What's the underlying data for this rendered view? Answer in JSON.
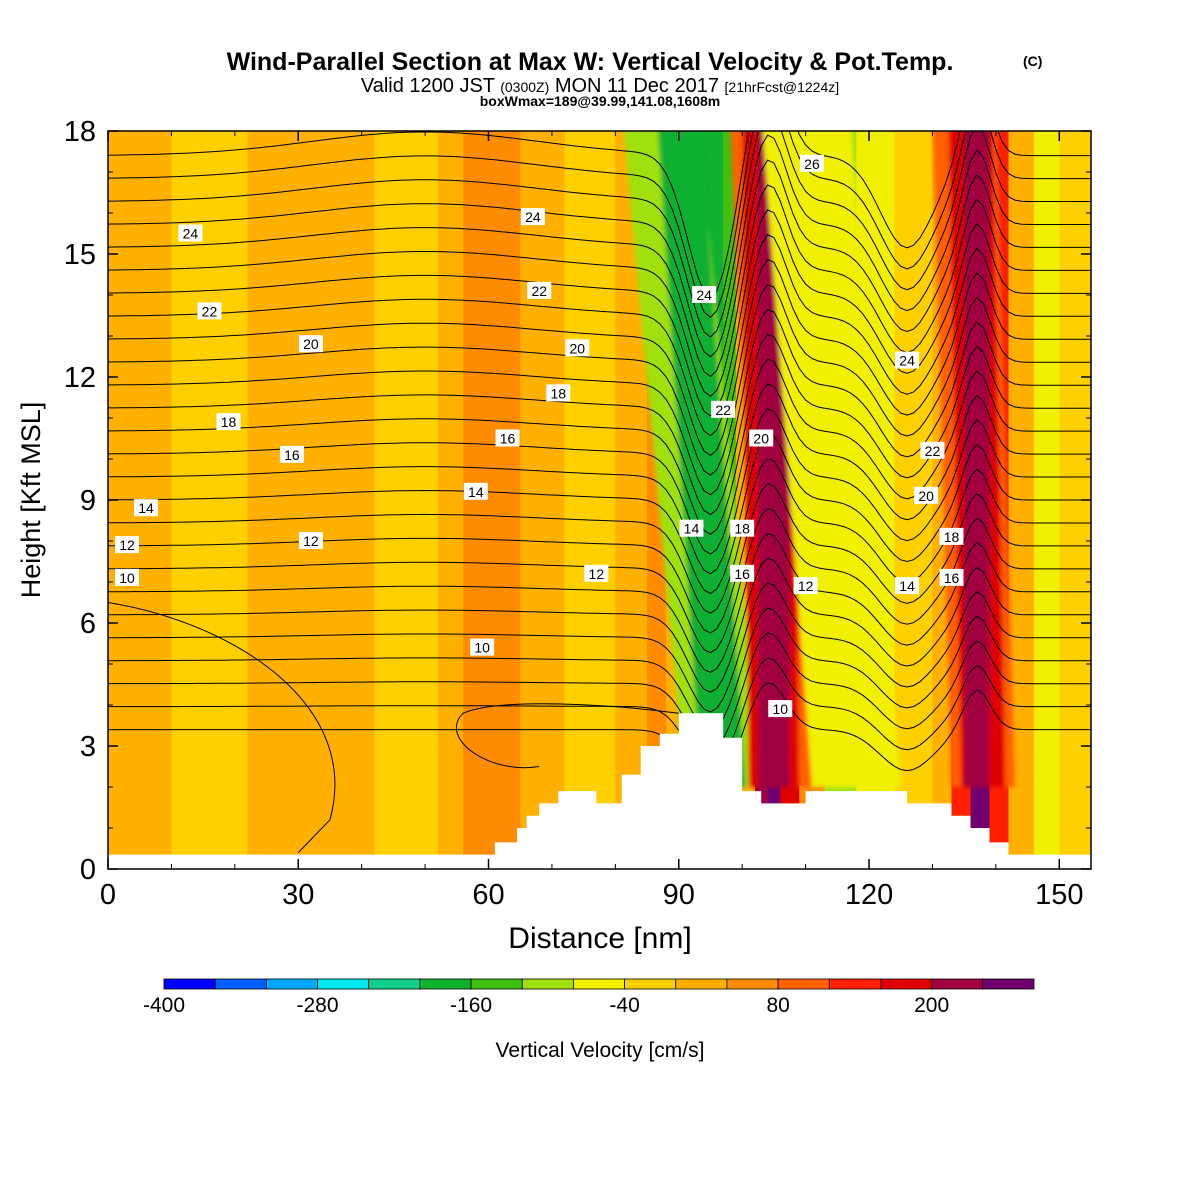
{
  "header": {
    "title_main": "Wind-Parallel Section at Max W: Vertical Velocity & Pot.Temp.",
    "title_mark": "(C)",
    "valid_prefix": "Valid 1200 JST",
    "valid_utc": "(0300Z)",
    "valid_date": "MON 11 Dec 2017",
    "valid_fcst": "[21hrFcst@1224z]",
    "box_info": "boxWmax=189@39.99,141.08,1608m"
  },
  "colorbar": {
    "label": "Vertical Velocity [cm/s]",
    "tick_labels": [
      "-400",
      "-280",
      "-160",
      "-40",
      "80",
      "200"
    ],
    "tick_values": [
      -400,
      -280,
      -160,
      -40,
      80,
      200
    ],
    "levels": [
      -400,
      -360,
      -320,
      -280,
      -240,
      -200,
      -160,
      -120,
      -80,
      -40,
      0,
      40,
      80,
      120,
      160,
      200,
      240,
      280
    ],
    "colors": [
      "#0000ff",
      "#0060ff",
      "#00a8ff",
      "#00e8f0",
      "#10d08c",
      "#10b030",
      "#40c010",
      "#a0e010",
      "#f0f000",
      "#ffd000",
      "#ffb000",
      "#ff8c00",
      "#ff6000",
      "#ff2000",
      "#e00000",
      "#a00040",
      "#700070"
    ]
  },
  "chart_data": {
    "type": "heatmap",
    "title": "Wind-Parallel Section at Max W: Vertical Velocity & Pot.Temp.",
    "xlabel": "Distance [nm]",
    "ylabel": "Height [Kft MSL]",
    "xlim": [
      0,
      155
    ],
    "ylim": [
      0,
      18
    ],
    "x_ticks": [
      0,
      30,
      60,
      90,
      120,
      150
    ],
    "y_ticks": [
      0,
      3,
      6,
      9,
      12,
      15,
      18
    ],
    "shading_variable": "Vertical Velocity [cm/s]",
    "shading_columns": [
      {
        "x": 0,
        "w": 0
      },
      {
        "x": 10,
        "w": -20
      },
      {
        "x": 22,
        "w": 20
      },
      {
        "x": 35,
        "w": 10
      },
      {
        "x": 42,
        "w": -10
      },
      {
        "x": 52,
        "w": 5
      },
      {
        "x": 56,
        "w": 50
      },
      {
        "x": 65,
        "w": 10
      },
      {
        "x": 72,
        "w": -20
      },
      {
        "x": 80,
        "w": 0
      },
      {
        "x": 85,
        "w": 55
      },
      {
        "x": 88,
        "w": 30
      },
      {
        "x": 93,
        "w": -180
      },
      {
        "x": 97,
        "w": -150
      },
      {
        "x": 99,
        "w": 30
      },
      {
        "x": 102,
        "w": 230
      },
      {
        "x": 104,
        "w": 260
      },
      {
        "x": 106,
        "w": 180
      },
      {
        "x": 109,
        "w": 60
      },
      {
        "x": 113,
        "w": -90
      },
      {
        "x": 118,
        "w": -70
      },
      {
        "x": 124,
        "w": -30
      },
      {
        "x": 130,
        "w": 30
      },
      {
        "x": 133,
        "w": 120
      },
      {
        "x": 136,
        "w": 240
      },
      {
        "x": 139,
        "w": 140
      },
      {
        "x": 142,
        "w": 20
      },
      {
        "x": 146,
        "w": -60
      },
      {
        "x": 150,
        "w": -10
      },
      {
        "x": 155,
        "w": 10
      }
    ],
    "contour_variable": "Potential Temperature",
    "contour_labels": [
      {
        "label": "24",
        "x": 13,
        "y": 15.5
      },
      {
        "label": "22",
        "x": 16,
        "y": 13.6
      },
      {
        "label": "20",
        "x": 32,
        "y": 12.8
      },
      {
        "label": "18",
        "x": 19,
        "y": 10.9
      },
      {
        "label": "16",
        "x": 29,
        "y": 10.1
      },
      {
        "label": "14",
        "x": 6,
        "y": 8.8
      },
      {
        "label": "12",
        "x": 3,
        "y": 7.9
      },
      {
        "label": "10",
        "x": 3,
        "y": 7.1
      },
      {
        "label": "12",
        "x": 32,
        "y": 8.0
      },
      {
        "label": "14",
        "x": 58,
        "y": 9.2
      },
      {
        "label": "16",
        "x": 63,
        "y": 10.5
      },
      {
        "label": "18",
        "x": 71,
        "y": 11.6
      },
      {
        "label": "20",
        "x": 74,
        "y": 12.7
      },
      {
        "label": "22",
        "x": 68,
        "y": 14.1
      },
      {
        "label": "24",
        "x": 67,
        "y": 15.9
      },
      {
        "label": "12",
        "x": 77,
        "y": 7.2
      },
      {
        "label": "10",
        "x": 59,
        "y": 5.4
      },
      {
        "label": "24",
        "x": 94,
        "y": 14.0
      },
      {
        "label": "22",
        "x": 97,
        "y": 11.2
      },
      {
        "label": "20",
        "x": 103,
        "y": 10.5
      },
      {
        "label": "18",
        "x": 100,
        "y": 8.3
      },
      {
        "label": "16",
        "x": 100,
        "y": 7.2
      },
      {
        "label": "14",
        "x": 92,
        "y": 8.3
      },
      {
        "label": "12",
        "x": 110,
        "y": 6.9
      },
      {
        "label": "10",
        "x": 106,
        "y": 3.9
      },
      {
        "label": "26",
        "x": 111,
        "y": 17.2
      },
      {
        "label": "24",
        "x": 126,
        "y": 12.4
      },
      {
        "label": "22",
        "x": 130,
        "y": 10.2
      },
      {
        "label": "20",
        "x": 129,
        "y": 9.1
      },
      {
        "label": "18",
        "x": 133,
        "y": 8.1
      },
      {
        "label": "16",
        "x": 133,
        "y": 7.1
      },
      {
        "label": "14",
        "x": 126,
        "y": 6.9
      }
    ],
    "terrain_kft": [
      {
        "x": 0,
        "top": 0.35
      },
      {
        "x": 59,
        "top": 0.35
      },
      {
        "x": 61,
        "top": 0.65
      },
      {
        "x": 64.5,
        "top": 1.0
      },
      {
        "x": 66,
        "top": 1.3
      },
      {
        "x": 68,
        "top": 1.6
      },
      {
        "x": 71,
        "top": 1.9
      },
      {
        "x": 77,
        "top": 1.6
      },
      {
        "x": 81,
        "top": 2.3
      },
      {
        "x": 84,
        "top": 3.0
      },
      {
        "x": 87,
        "top": 3.3
      },
      {
        "x": 90,
        "top": 3.8
      },
      {
        "x": 97,
        "top": 3.2
      },
      {
        "x": 100,
        "top": 1.9
      },
      {
        "x": 103,
        "top": 1.6
      },
      {
        "x": 110,
        "top": 1.9
      },
      {
        "x": 126,
        "top": 1.6
      },
      {
        "x": 133,
        "top": 1.3
      },
      {
        "x": 136,
        "top": 1.0
      },
      {
        "x": 139,
        "top": 0.65
      },
      {
        "x": 142,
        "top": 0.35
      },
      {
        "x": 155,
        "top": 0.35
      }
    ]
  }
}
